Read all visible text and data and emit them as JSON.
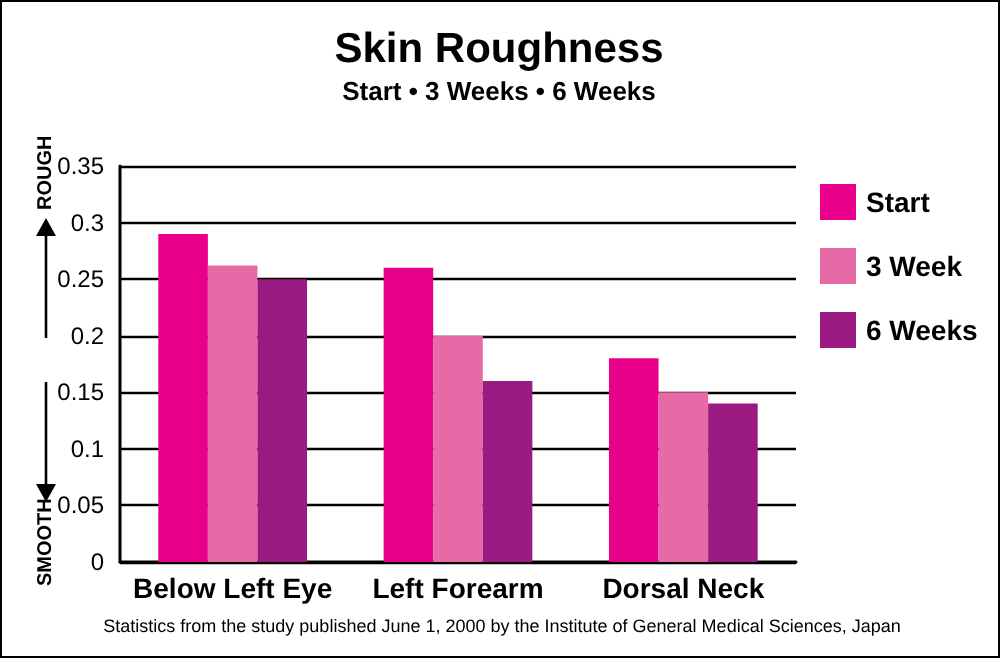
{
  "chart_data": {
    "type": "bar",
    "title": "Skin Roughness",
    "subtitle": "Start • 3 Weeks • 6 Weeks",
    "categories": [
      "Below Left Eye",
      "Left Forearm",
      "Dorsal Neck"
    ],
    "series": [
      {
        "name": "Start",
        "color": "#e8008a",
        "values": [
          0.29,
          0.26,
          0.18
        ]
      },
      {
        "name": "3 Week",
        "color": "#e66aa5",
        "values": [
          0.262,
          0.2,
          0.15
        ]
      },
      {
        "name": "6 Weeks",
        "color": "#9b1b82",
        "values": [
          0.25,
          0.16,
          0.14
        ]
      }
    ],
    "ylim": [
      0,
      0.35
    ],
    "yticks": [
      0,
      0.05,
      0.1,
      0.15,
      0.2,
      0.25,
      0.3,
      0.35
    ],
    "grid": "y",
    "legend": "top right",
    "annotations": [
      "ROUGH",
      "SMOOTH",
      "Statistics from the study published June 1, 2000 by the Institute of General Medical Sciences, Japan"
    ]
  }
}
